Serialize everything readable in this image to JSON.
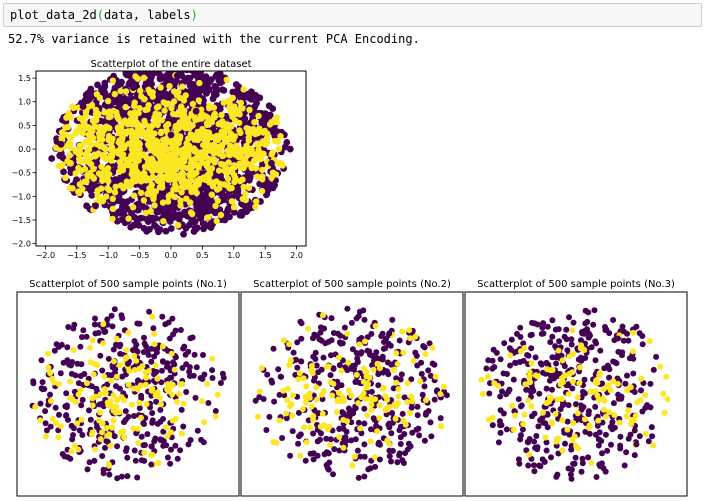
{
  "cell": {
    "code_func": "plot_data_2d",
    "code_args": "data, labels",
    "output": "52.7% variance is retained with the current PCA Encoding."
  },
  "colors": {
    "class0": "#440154",
    "class1": "#fde725",
    "axis": "#000000"
  },
  "chart_data": [
    {
      "type": "scatter",
      "title": "Scatterplot of the entire dataset",
      "xlim": [
        -2.15,
        2.15
      ],
      "ylim": [
        -2.05,
        1.65
      ],
      "xticks": [
        -2.0,
        -1.5,
        -1.0,
        -0.5,
        0.0,
        0.5,
        1.0,
        1.5,
        2.0
      ],
      "xtick_labels": [
        "−2.0",
        "−1.5",
        "−1.0",
        "−0.5",
        "0.0",
        "0.5",
        "1.0",
        "1.5",
        "2.0"
      ],
      "yticks": [
        1.5,
        1.0,
        0.5,
        0.0,
        -0.5,
        -1.0,
        -1.5,
        -2.0
      ],
      "ytick_labels": [
        "1.5",
        "1.0",
        "0.5",
        "0.0",
        "−0.5",
        "−1.0",
        "−1.5",
        "−2.0"
      ],
      "series": [
        {
          "class": 0,
          "x": [
            -1.9,
            -1.75,
            1.9,
            0.3,
            -0.2,
            0.1,
            -1.2,
            1.3,
            -0.6,
            0.9,
            0.2,
            -0.9,
            1.1,
            -1.4,
            0.6,
            -0.3,
            0.0,
            1.6,
            -1.6,
            0.4
          ],
          "y": [
            -0.2,
            0.1,
            0.0,
            1.5,
            -1.75,
            1.55,
            -1.2,
            1.1,
            1.3,
            -1.3,
            -1.8,
            1.0,
            -1.4,
            0.9,
            1.4,
            -1.5,
            0.3,
            -0.3,
            -0.4,
            0.8
          ]
        },
        {
          "class": 1,
          "x": [
            -1.6,
            1.75,
            -0.5,
            0.4,
            1.2,
            -1.1,
            0.0,
            0.8,
            -0.8,
            1.5
          ],
          "y": [
            -0.3,
            -0.3,
            0.1,
            -0.2,
            0.0,
            0.2,
            -0.4,
            0.3,
            -0.1,
            0.1
          ]
        }
      ]
    },
    {
      "type": "scatter",
      "title": "Scatterplot of 500 sample points (No.1)",
      "series": [
        {
          "class": 0,
          "x": [
            -1.8,
            1.6,
            0.2,
            -0.4,
            0.9,
            -1.2,
            1.3,
            -0.7,
            0.5,
            0.0
          ],
          "y": [
            0.1,
            0.3,
            1.4,
            -1.6,
            1.1,
            -0.9,
            -1.0,
            1.2,
            -1.4,
            0.6
          ]
        },
        {
          "class": 1,
          "x": [
            -1.2,
            0.4,
            1.7,
            -0.5,
            1.1
          ],
          "y": [
            -0.1,
            -0.2,
            0.2,
            0.1,
            0.0
          ]
        }
      ]
    },
    {
      "type": "scatter",
      "title": "Scatterplot of 500 sample points (No.2)",
      "series": [
        {
          "class": 0,
          "x": [
            -1.9,
            1.5,
            0.1,
            -0.5,
            0.8,
            -1.1,
            1.2,
            -0.6,
            0.6,
            0.0
          ],
          "y": [
            -0.1,
            0.4,
            1.5,
            -1.5,
            1.2,
            -0.8,
            -1.1,
            1.3,
            -1.3,
            0.5
          ]
        },
        {
          "class": 1,
          "x": [
            -1.3,
            0.3,
            1.9,
            -0.4,
            1.0
          ],
          "y": [
            -0.2,
            -0.1,
            0.0,
            0.2,
            0.1
          ]
        }
      ]
    },
    {
      "type": "scatter",
      "title": "Scatterplot of 500 sample points (No.3)",
      "series": [
        {
          "class": 0,
          "x": [
            -1.8,
            1.6,
            0.2,
            -0.4,
            0.9,
            -1.2,
            1.3,
            -0.7,
            0.5,
            0.0
          ],
          "y": [
            0.5,
            0.2,
            1.4,
            -1.6,
            1.1,
            -0.9,
            -1.0,
            1.2,
            -1.4,
            -0.2
          ]
        },
        {
          "class": 1,
          "x": [
            -2.0,
            0.6,
            1.4,
            -0.3,
            0.9
          ],
          "y": [
            0.0,
            0.1,
            0.3,
            -0.1,
            0.2
          ]
        }
      ]
    }
  ]
}
